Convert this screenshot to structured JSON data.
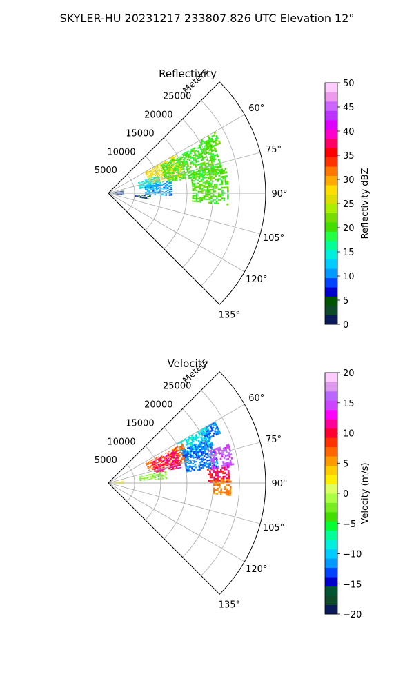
{
  "figure": {
    "suptitle": "SKYLER-HU  20231217  233807.826 UTC Elevation 12°"
  },
  "chart_data": [
    {
      "type": "heatmap",
      "subtype": "polar-sector-radar",
      "title": "Reflectivity",
      "range_label": "Meters",
      "range_ticks": [
        "5000",
        "10000",
        "15000",
        "20000",
        "25000"
      ],
      "range_values": [
        5000,
        10000,
        15000,
        20000,
        25000
      ],
      "range_max": 30000,
      "azimuth_ticks": [
        "60°",
        "75°",
        "90°",
        "105°",
        "120°",
        "135°"
      ],
      "azimuth_values": [
        60,
        75,
        90,
        105,
        120,
        135
      ],
      "azimuth_range": [
        45,
        135
      ],
      "grid": true,
      "colorbar": {
        "label": "Reflectivity dBZ",
        "ticks": [
          "0",
          "5",
          "10",
          "15",
          "20",
          "25",
          "30",
          "35",
          "40",
          "45",
          "50"
        ],
        "range": [
          0,
          50
        ],
        "colors": [
          "#0a1a5a",
          "#0c4a2a",
          "#005500",
          "#0000cc",
          "#0044ff",
          "#0099ff",
          "#00ccff",
          "#00eedd",
          "#00ff99",
          "#22ff44",
          "#44dd00",
          "#77dd00",
          "#aaee00",
          "#dddd00",
          "#ffdd00",
          "#ffaa00",
          "#ff7700",
          "#ff3300",
          "#ff0000",
          "#ff0066",
          "#ff00cc",
          "#dd00ff",
          "#bb33ff",
          "#cc66ff",
          "#ee99ee",
          "#ffccff"
        ]
      },
      "echo_regions": [
        {
          "az": [
            60,
            66
          ],
          "r": [
            20000,
            23500
          ],
          "value": 20
        },
        {
          "az": [
            60,
            78
          ],
          "r": [
            8000,
            15000
          ],
          "value": 27
        },
        {
          "az": [
            62,
            80
          ],
          "r": [
            11000,
            22000
          ],
          "value": 20
        },
        {
          "az": [
            70,
            82
          ],
          "r": [
            6000,
            10000
          ],
          "value": 14
        },
        {
          "az": [
            76,
            95
          ],
          "r": [
            16000,
            23000
          ],
          "value": 20
        },
        {
          "az": [
            78,
            92
          ],
          "r": [
            7000,
            12000
          ],
          "value": 11
        },
        {
          "az": [
            80,
            98
          ],
          "r": [
            900,
            3000
          ],
          "value": 6
        },
        {
          "az": [
            93,
            98
          ],
          "r": [
            5000,
            8000
          ],
          "value": 5
        }
      ]
    },
    {
      "type": "heatmap",
      "subtype": "polar-sector-radar",
      "title": "Velocity",
      "range_label": "Meters",
      "range_ticks": [
        "5000",
        "10000",
        "15000",
        "20000",
        "25000"
      ],
      "range_values": [
        5000,
        10000,
        15000,
        20000,
        25000
      ],
      "range_max": 30000,
      "azimuth_ticks": [
        "60°",
        "75°",
        "90°",
        "105°",
        "120°",
        "135°"
      ],
      "azimuth_values": [
        60,
        75,
        90,
        105,
        120,
        135
      ],
      "azimuth_range": [
        45,
        135
      ],
      "grid": true,
      "colorbar": {
        "label": "Velocity (m/s)",
        "ticks": [
          "−20",
          "−15",
          "−10",
          "−5",
          "0",
          "5",
          "10",
          "15",
          "20"
        ],
        "range": [
          -20,
          20
        ],
        "colors": [
          "#0a1a5a",
          "#0c4a2a",
          "#005533",
          "#0000cc",
          "#0044ff",
          "#0099ff",
          "#00ccff",
          "#00eedd",
          "#00ff99",
          "#00ff33",
          "#44dd00",
          "#77ee22",
          "#aaff44",
          "#ddff66",
          "#ffee00",
          "#ffcc00",
          "#ff9900",
          "#ff6600",
          "#ff3300",
          "#ff0033",
          "#ff0099",
          "#ff00ff",
          "#cc44ff",
          "#bb66ff",
          "#dd99ee",
          "#ffccff"
        ]
      },
      "echo_regions": [
        {
          "az": [
            60,
            66
          ],
          "r": [
            20000,
            23500
          ],
          "value": -12
        },
        {
          "az": [
            60,
            70
          ],
          "r": [
            15000,
            21000
          ],
          "value": -9
        },
        {
          "az": [
            62,
            74
          ],
          "r": [
            8000,
            16000
          ],
          "value": 7
        },
        {
          "az": [
            64,
            78
          ],
          "r": [
            9000,
            14000
          ],
          "value": 11
        },
        {
          "az": [
            66,
            82
          ],
          "r": [
            15000,
            21000
          ],
          "value": -12
        },
        {
          "az": [
            72,
            82
          ],
          "r": [
            20000,
            24000
          ],
          "value": 15
        },
        {
          "az": [
            78,
            86
          ],
          "r": [
            6000,
            11000
          ],
          "value": -2
        },
        {
          "az": [
            82,
            90
          ],
          "r": [
            19000,
            23000
          ],
          "value": 10
        },
        {
          "az": [
            88,
            96
          ],
          "r": [
            20000,
            23500
          ],
          "value": 6
        },
        {
          "az": [
            82,
            96
          ],
          "r": [
            900,
            3000
          ],
          "value": 2
        }
      ]
    }
  ]
}
